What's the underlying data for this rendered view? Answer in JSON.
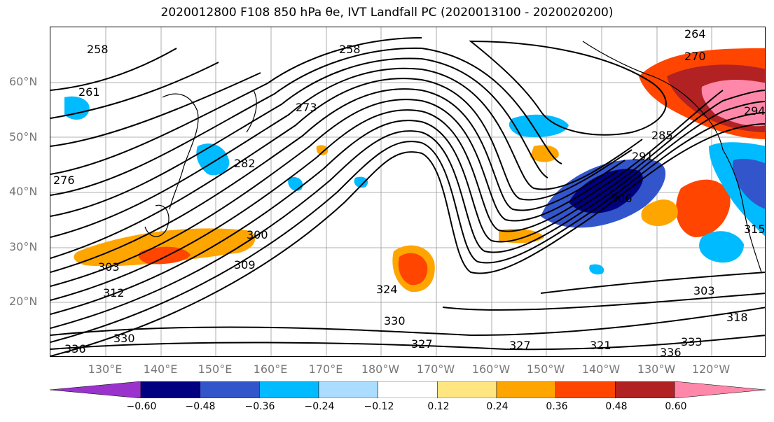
{
  "title": "2020012800 F108 850 hPa θe, IVT Landfall PC (2020013100 - 2020020200)",
  "map": {
    "lat_labels": [
      "60°N",
      "50°N",
      "40°N",
      "30°N",
      "20°N"
    ],
    "lon_labels": [
      "130°E",
      "140°E",
      "150°E",
      "160°E",
      "170°E",
      "180°W",
      "170°W",
      "160°W",
      "150°W",
      "140°W",
      "130°W",
      "120°W"
    ],
    "contour_labels": [
      "258",
      "261",
      "264",
      "270",
      "273",
      "276",
      "282",
      "285",
      "291",
      "294",
      "300",
      "303",
      "306",
      "309",
      "312",
      "315",
      "318",
      "321",
      "324",
      "327",
      "330",
      "333",
      "336"
    ],
    "coastline_color": "#000000",
    "grid": true
  },
  "colorbar": {
    "ticks": [
      "−0.60",
      "−0.48",
      "−0.36",
      "−0.24",
      "−0.12",
      "0.12",
      "0.24",
      "0.36",
      "0.48",
      "0.60"
    ],
    "colors": [
      "#9933cc",
      "#000080",
      "#3355cc",
      "#00bbff",
      "#aaddff",
      "#ffffff",
      "#ffe680",
      "#ffa500",
      "#ff4500",
      "#b22222",
      "#ff88aa"
    ],
    "extend": "both"
  }
}
